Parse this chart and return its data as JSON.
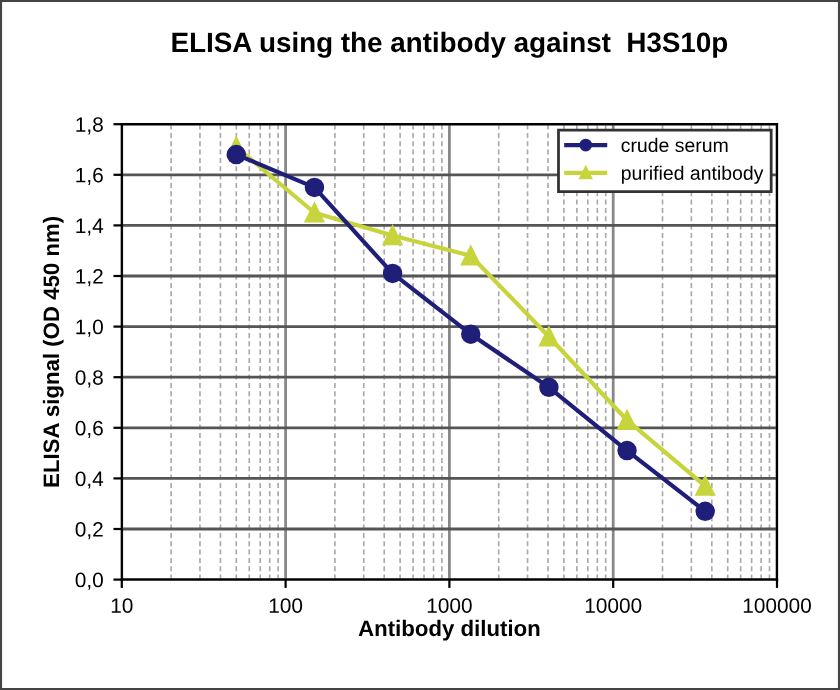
{
  "chart_data": {
    "type": "line",
    "title": "ELISA using the antibody against  H3S10p",
    "xlabel": "Antibody dilution",
    "ylabel": "ELISA signal (OD 450 nm)",
    "x": [
      50,
      150,
      450,
      1350,
      4050,
      12150,
      36450
    ],
    "series": [
      {
        "name": "crude serum",
        "color": "#1f1f7a",
        "marker": "circle",
        "values": [
          1.68,
          1.55,
          1.21,
          0.97,
          0.76,
          0.51,
          0.27
        ]
      },
      {
        "name": "purified antibody",
        "color": "#c8d43c",
        "marker": "triangle",
        "values": [
          1.71,
          1.45,
          1.36,
          1.28,
          0.96,
          0.63,
          0.37
        ]
      }
    ],
    "log": "x",
    "xlim": [
      10,
      100000
    ],
    "xticks": [
      10,
      100,
      1000,
      10000,
      100000
    ],
    "ylim": [
      0,
      1.8
    ],
    "yticks": [
      {
        "value": 0,
        "label": "0,0"
      },
      {
        "value": 0.2,
        "label": "0,2"
      },
      {
        "value": 0.4,
        "label": "0,4"
      },
      {
        "value": 0.6,
        "label": "0,6"
      },
      {
        "value": 0.8,
        "label": "0,8"
      },
      {
        "value": 1.0,
        "label": "1,0"
      },
      {
        "value": 1.2,
        "label": "1,2"
      },
      {
        "value": 1.4,
        "label": "1,4"
      },
      {
        "value": 1.6,
        "label": "1,6"
      },
      {
        "value": 1.8,
        "label": "1,8"
      }
    ],
    "grid": true,
    "legend": "top right",
    "line_style": "solid"
  }
}
